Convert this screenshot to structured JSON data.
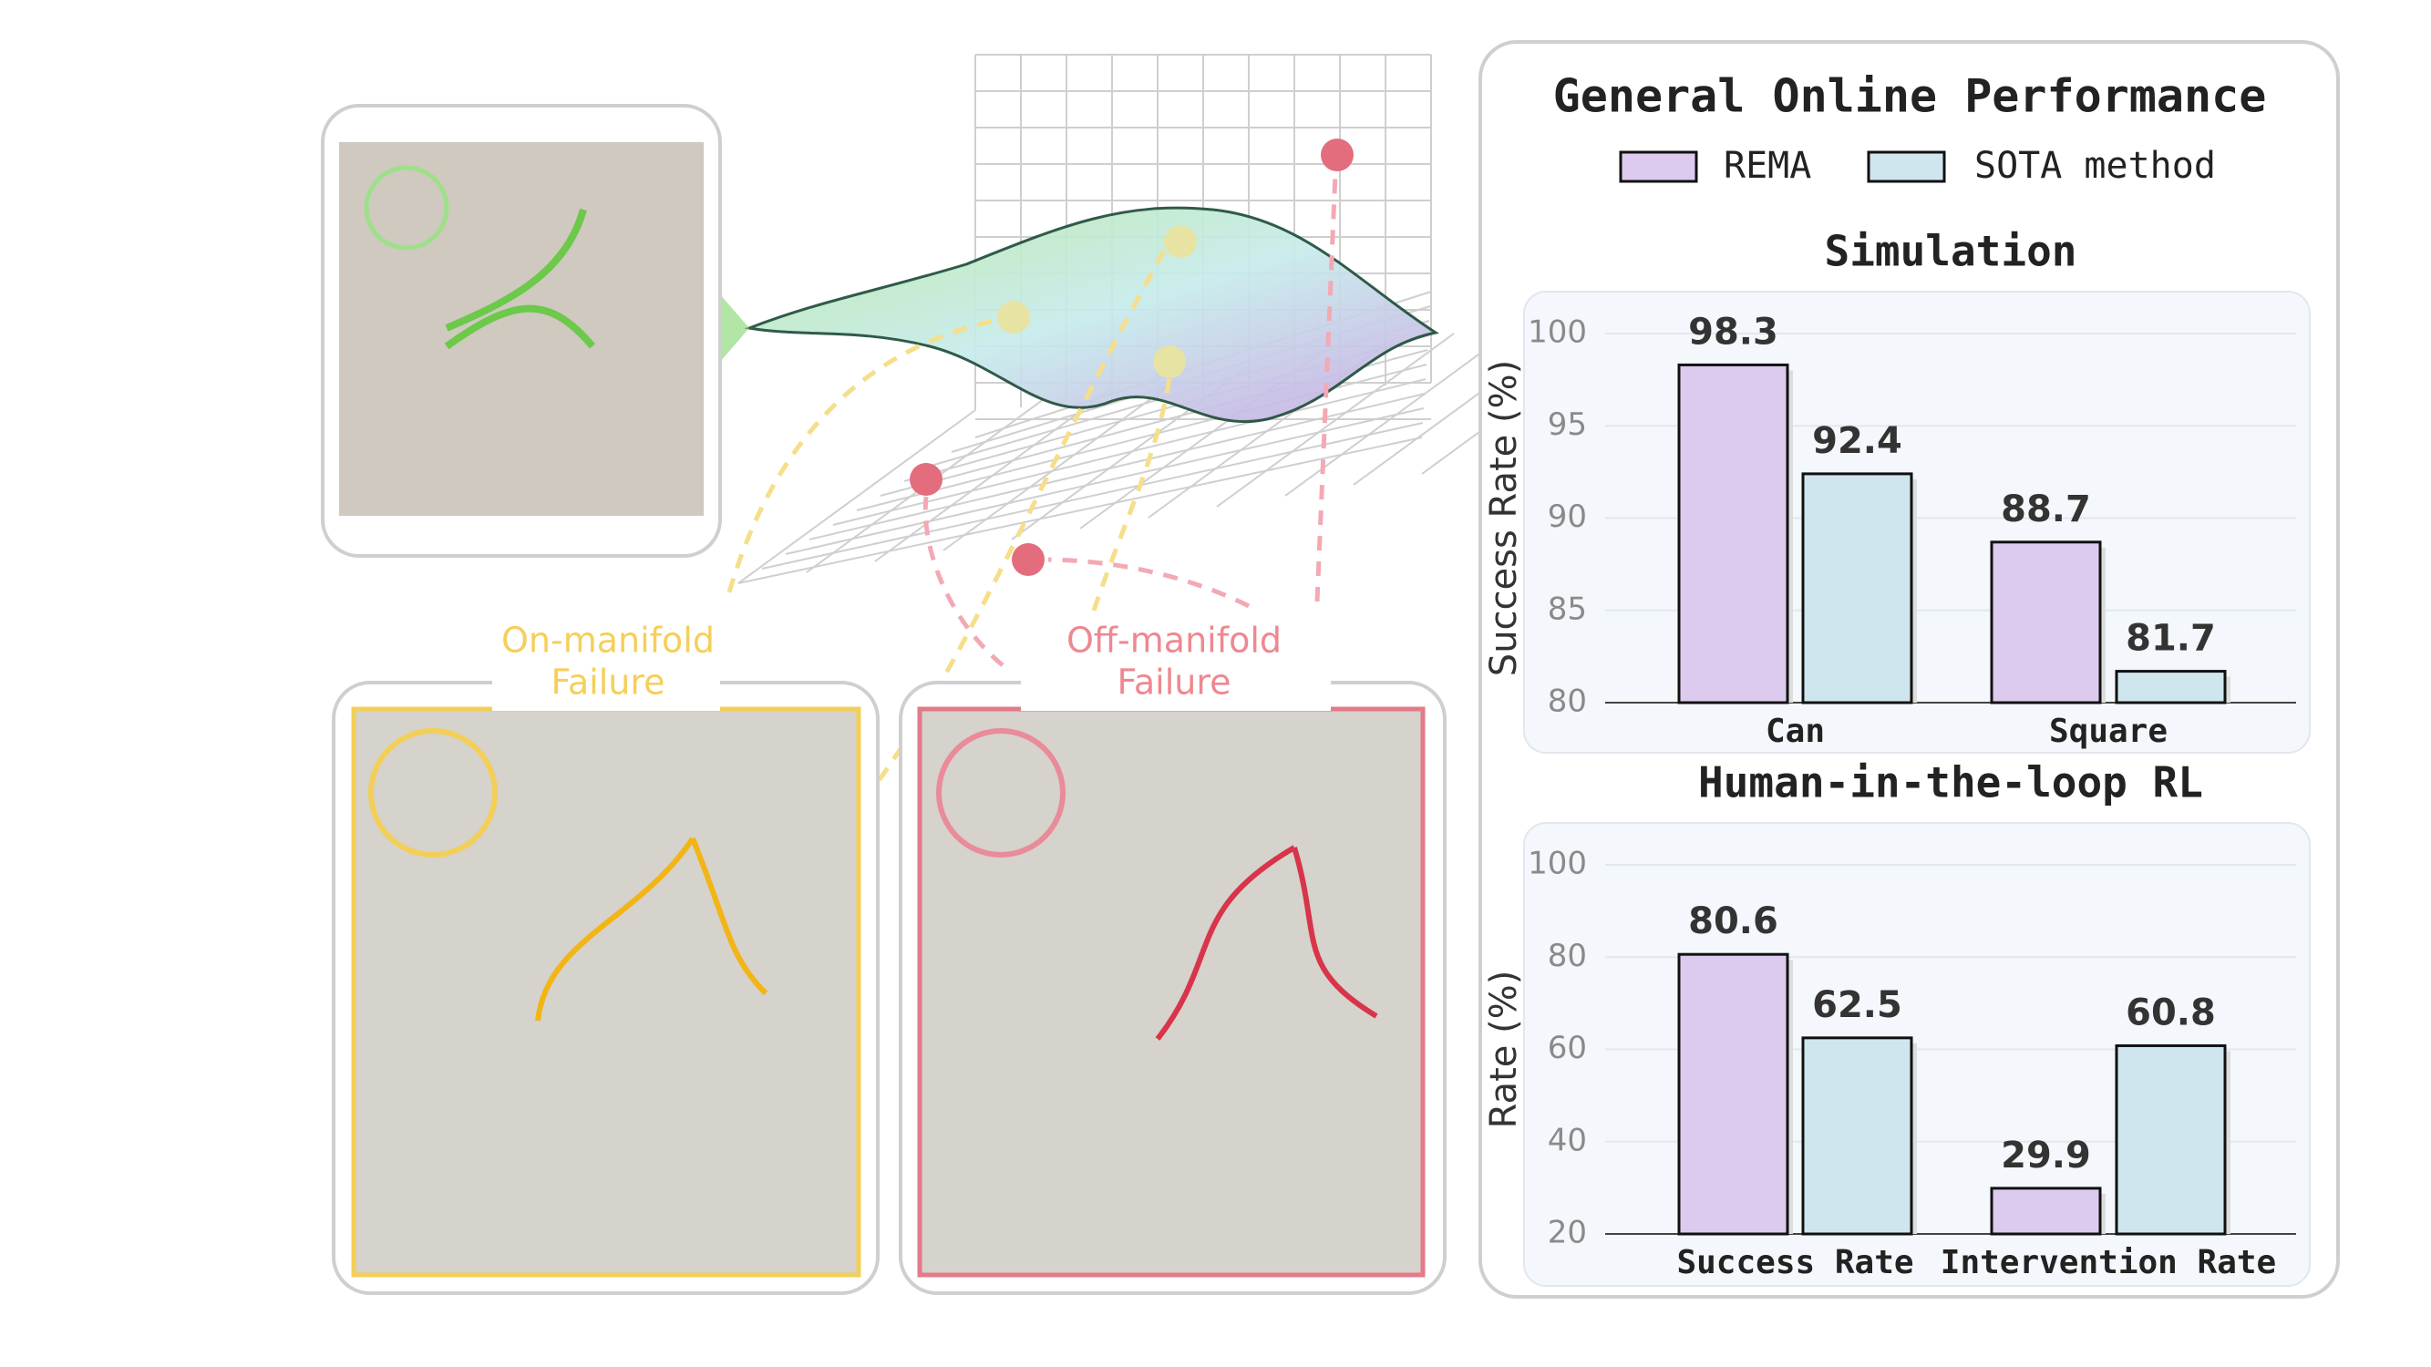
{
  "title": "General Online Performance",
  "annotations": {
    "on_manifold": [
      "On-manifold",
      "Failure"
    ],
    "off_manifold": [
      "Off-manifold",
      "Failure"
    ]
  },
  "chart_data": [
    {
      "type": "bar",
      "title": "Simulation",
      "y_label": "Success Rate (%)",
      "categories": [
        "Can",
        "Square"
      ],
      "series": [
        {
          "name": "REMA",
          "color": "#dccaef",
          "values": [
            98.3,
            88.7
          ]
        },
        {
          "name": "SOTA method",
          "color": "#cfe6ee",
          "values": [
            92.4,
            81.7
          ]
        }
      ],
      "ylim": [
        80,
        100
      ],
      "yticks": [
        80,
        85,
        90,
        95,
        100
      ],
      "grid": true
    },
    {
      "type": "bar",
      "title": "Human-in-the-loop RL",
      "y_label": "Rate (%)",
      "categories": [
        "Success Rate",
        "Intervention Rate"
      ],
      "series": [
        {
          "name": "REMA",
          "color": "#dccaef",
          "values": [
            80.6,
            29.9
          ]
        },
        {
          "name": "SOTA method",
          "color": "#cfe6ee",
          "values": [
            62.5,
            60.8
          ]
        }
      ],
      "ylim": [
        20,
        100
      ],
      "yticks": [
        20,
        40,
        60,
        80,
        100
      ],
      "grid": true
    }
  ]
}
